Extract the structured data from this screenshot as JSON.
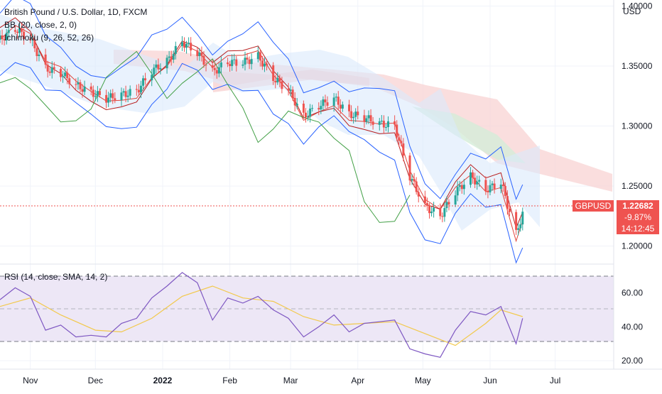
{
  "header": {
    "title": "British Pound / U.S. Dollar, 1D, FXCM",
    "bb_label": "BB (20, close, 2, 0)",
    "ichimoku_label": "Ichimoku (9, 26, 52, 26)",
    "rsi_label": "RSI (14, close, SMA, 14, 2)",
    "currency": "USD"
  },
  "price_tag": {
    "symbol": "GBPUSD",
    "price": "1.22682",
    "change": "-9.87%",
    "countdown": "14:12:45"
  },
  "colors": {
    "up": "#26a69a",
    "down": "#ef5350",
    "bb_band": "#2962ff",
    "bb_basis": "#e0443b",
    "rsi_line": "#7e57c2",
    "rsi_ma": "#f2c94c",
    "tenkan": "#2962ff",
    "kijun": "#b71c1c",
    "lagging": "#43a047",
    "cloud_bear": "#f8d3d3",
    "cloud_bull": "#d5ecd8"
  },
  "chart_data": {
    "type": "candlestick",
    "x_ticks": [
      "Nov",
      "Dec",
      "2022",
      "Feb",
      "Mar",
      "Apr",
      "May",
      "Jun",
      "Jul"
    ],
    "price_axis": {
      "ticks": [
        "1.20000",
        "1.25000",
        "1.30000",
        "1.35000",
        "1.40000"
      ],
      "ylim": [
        1.185,
        1.405
      ]
    },
    "rsi_axis": {
      "ticks": [
        "20.00",
        "40.00",
        "60.00"
      ],
      "ylim": [
        15,
        77
      ],
      "bands": [
        30,
        70
      ]
    },
    "price_path": [
      [
        "2021-10-18",
        1.372
      ],
      [
        "2021-10-25",
        1.381
      ],
      [
        "2021-11-01",
        1.372
      ],
      [
        "2021-11-08",
        1.348
      ],
      [
        "2021-11-15",
        1.344
      ],
      [
        "2021-11-22",
        1.334
      ],
      [
        "2021-11-29",
        1.328
      ],
      [
        "2021-12-06",
        1.323
      ],
      [
        "2021-12-13",
        1.326
      ],
      [
        "2021-12-20",
        1.329
      ],
      [
        "2021-12-27",
        1.346
      ],
      [
        "2022-01-03",
        1.354
      ],
      [
        "2022-01-10",
        1.37
      ],
      [
        "2022-01-17",
        1.361
      ],
      [
        "2022-01-24",
        1.345
      ],
      [
        "2022-01-31",
        1.353
      ],
      [
        "2022-02-07",
        1.353
      ],
      [
        "2022-02-14",
        1.358
      ],
      [
        "2022-02-21",
        1.34
      ],
      [
        "2022-02-28",
        1.33
      ],
      [
        "2022-03-07",
        1.308
      ],
      [
        "2022-03-14",
        1.317
      ],
      [
        "2022-03-21",
        1.323
      ],
      [
        "2022-03-28",
        1.31
      ],
      [
        "2022-04-04",
        1.307
      ],
      [
        "2022-04-11",
        1.302
      ],
      [
        "2022-04-18",
        1.3
      ],
      [
        "2022-04-25",
        1.258
      ],
      [
        "2022-05-02",
        1.233
      ],
      [
        "2022-05-09",
        1.225
      ],
      [
        "2022-05-16",
        1.245
      ],
      [
        "2022-05-23",
        1.258
      ],
      [
        "2022-05-30",
        1.247
      ],
      [
        "2022-06-06",
        1.253
      ],
      [
        "2022-06-13",
        1.21
      ],
      [
        "2022-06-16",
        1.227
      ]
    ],
    "rsi_path": [
      [
        "2021-10-18",
        56
      ],
      [
        "2021-10-25",
        63
      ],
      [
        "2021-11-01",
        58
      ],
      [
        "2021-11-08",
        38
      ],
      [
        "2021-11-15",
        41
      ],
      [
        "2021-11-22",
        34
      ],
      [
        "2021-11-29",
        35
      ],
      [
        "2021-12-06",
        34
      ],
      [
        "2021-12-13",
        42
      ],
      [
        "2021-12-20",
        45
      ],
      [
        "2021-12-27",
        57
      ],
      [
        "2022-01-03",
        64
      ],
      [
        "2022-01-10",
        72
      ],
      [
        "2022-01-17",
        66
      ],
      [
        "2022-01-24",
        44
      ],
      [
        "2022-01-31",
        57
      ],
      [
        "2022-02-07",
        54
      ],
      [
        "2022-02-14",
        58
      ],
      [
        "2022-02-21",
        50
      ],
      [
        "2022-02-28",
        45
      ],
      [
        "2022-03-07",
        34
      ],
      [
        "2022-03-14",
        40
      ],
      [
        "2022-03-21",
        47
      ],
      [
        "2022-03-28",
        37
      ],
      [
        "2022-04-04",
        42
      ],
      [
        "2022-04-11",
        43
      ],
      [
        "2022-04-18",
        44
      ],
      [
        "2022-04-25",
        27
      ],
      [
        "2022-05-02",
        24
      ],
      [
        "2022-05-09",
        22
      ],
      [
        "2022-05-16",
        38
      ],
      [
        "2022-05-23",
        49
      ],
      [
        "2022-05-30",
        47
      ],
      [
        "2022-06-06",
        52
      ],
      [
        "2022-06-13",
        30
      ],
      [
        "2022-06-16",
        45
      ]
    ],
    "rsi_ma_path": [
      [
        "2021-10-18",
        52
      ],
      [
        "2021-11-01",
        57
      ],
      [
        "2021-11-15",
        47
      ],
      [
        "2021-12-01",
        38
      ],
      [
        "2021-12-13",
        37
      ],
      [
        "2021-12-27",
        45
      ],
      [
        "2022-01-10",
        58
      ],
      [
        "2022-01-24",
        64
      ],
      [
        "2022-02-07",
        57
      ],
      [
        "2022-02-21",
        55
      ],
      [
        "2022-03-07",
        46
      ],
      [
        "2022-03-21",
        41
      ],
      [
        "2022-04-04",
        42
      ],
      [
        "2022-04-18",
        43
      ],
      [
        "2022-05-02",
        36
      ],
      [
        "2022-05-16",
        29
      ],
      [
        "2022-05-30",
        42
      ],
      [
        "2022-06-06",
        50
      ],
      [
        "2022-06-16",
        46
      ]
    ]
  }
}
